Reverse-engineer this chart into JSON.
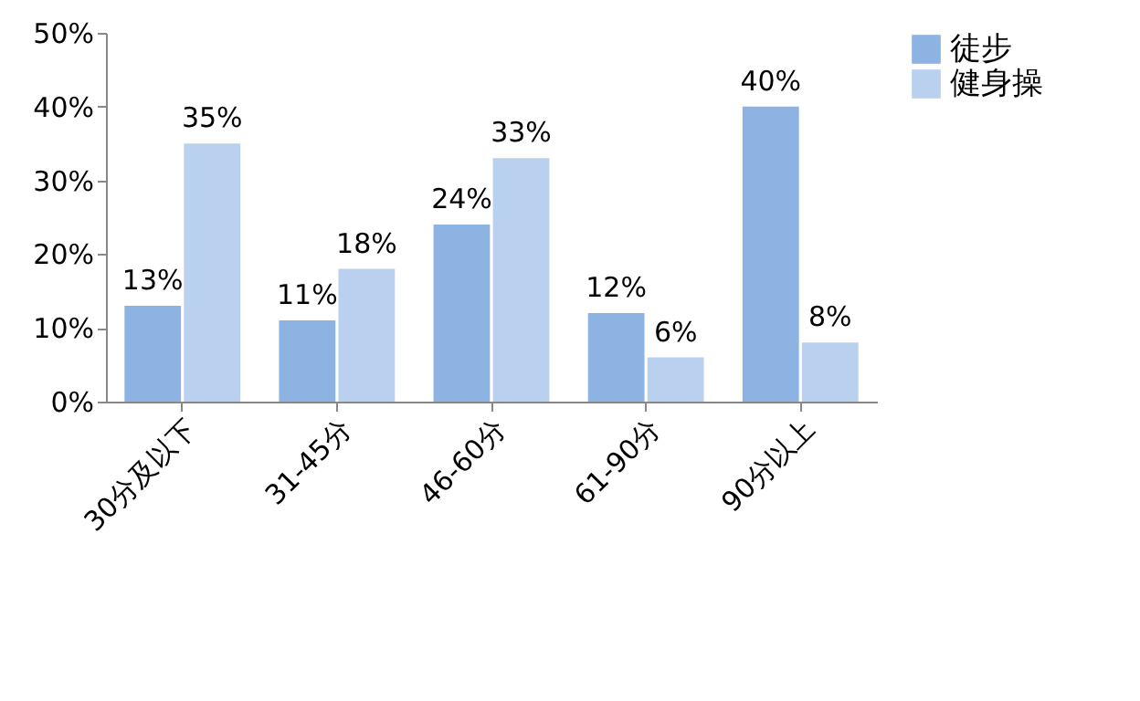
{
  "chart_data": {
    "type": "bar",
    "categories": [
      "30分及以下",
      "31-45分",
      "46-60分",
      "61-90分",
      "90分以上"
    ],
    "series": [
      {
        "name": "徒步",
        "color": "#8db3e2",
        "values": [
          13,
          11,
          24,
          12,
          40
        ],
        "value_labels": [
          "13%",
          "11%",
          "24%",
          "12%",
          "40%"
        ]
      },
      {
        "name": "健身操",
        "color": "#b9d0ef",
        "values": [
          35,
          18,
          33,
          6,
          8
        ],
        "value_labels": [
          "35%",
          "18%",
          "33%",
          "6%",
          "8%"
        ]
      }
    ],
    "ylim": [
      0,
      50
    ],
    "yticks": [
      {
        "value": 0,
        "label": "0%"
      },
      {
        "value": 10,
        "label": "10%"
      },
      {
        "value": 20,
        "label": "20%"
      },
      {
        "value": 30,
        "label": "30%"
      },
      {
        "value": 40,
        "label": "40%"
      },
      {
        "value": 50,
        "label": "50%"
      }
    ],
    "grid": false,
    "legend": "top right"
  }
}
